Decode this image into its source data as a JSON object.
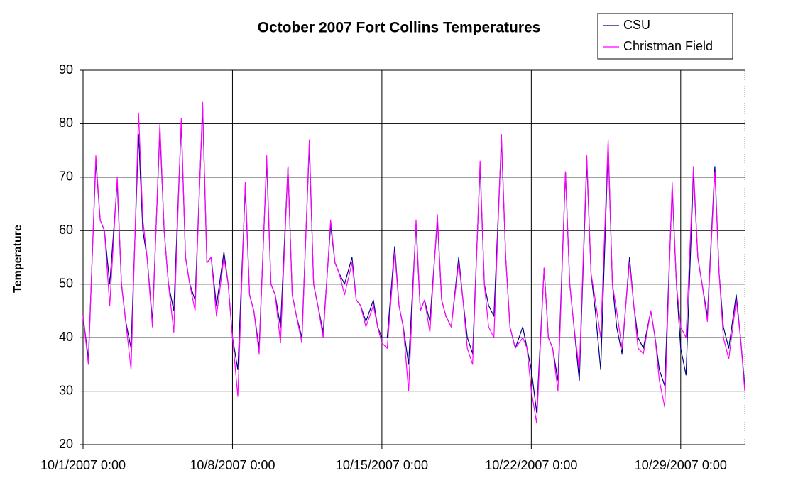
{
  "chart_data": {
    "type": "line",
    "title": "October 2007 Fort Collins Temperatures",
    "y_label": "Temperature",
    "x": [
      0,
      0.25,
      0.6,
      0.8,
      1,
      1.25,
      1.6,
      1.8,
      2,
      2.25,
      2.6,
      2.8,
      3,
      3.25,
      3.6,
      3.8,
      4,
      4.25,
      4.6,
      4.8,
      5,
      5.25,
      5.6,
      5.8,
      6,
      6.25,
      6.6,
      6.8,
      7,
      7.25,
      7.6,
      7.8,
      8,
      8.25,
      8.6,
      8.8,
      9,
      9.25,
      9.6,
      9.8,
      10,
      10.25,
      10.6,
      10.8,
      11,
      11.25,
      11.6,
      11.8,
      12,
      12.25,
      12.6,
      12.8,
      13,
      13.25,
      13.6,
      13.8,
      14,
      14.25,
      14.6,
      14.8,
      15,
      15.25,
      15.6,
      15.8,
      16,
      16.25,
      16.6,
      16.8,
      17,
      17.25,
      17.6,
      17.8,
      18,
      18.25,
      18.6,
      18.8,
      19,
      19.25,
      19.6,
      19.8,
      20,
      20.25,
      20.6,
      20.8,
      21,
      21.25,
      21.6,
      21.8,
      22,
      22.25,
      22.6,
      22.8,
      23,
      23.25,
      23.6,
      23.8,
      24,
      24.25,
      24.6,
      24.8,
      25,
      25.25,
      25.6,
      25.8,
      26,
      26.25,
      26.6,
      26.8,
      27,
      27.25,
      27.6,
      27.8,
      28,
      28.25,
      28.6,
      28.8,
      29,
      29.25,
      29.6,
      29.8,
      30,
      30.25,
      30.6,
      30.8,
      31
    ],
    "series": [
      {
        "name": "CSU",
        "color": "#000080",
        "values": [
          44,
          36,
          73,
          62,
          60,
          50,
          69,
          50,
          43,
          38,
          78,
          60,
          55,
          43,
          79,
          60,
          50,
          45,
          80,
          55,
          50,
          47,
          83,
          54,
          55,
          46,
          56,
          50,
          40,
          34,
          68,
          48,
          45,
          38,
          73,
          50,
          48,
          42,
          72,
          48,
          44,
          40,
          76,
          50,
          46,
          41,
          61,
          54,
          52,
          50,
          55,
          47,
          46,
          43,
          47,
          42,
          40,
          40,
          57,
          46,
          42,
          35,
          61,
          45,
          47,
          43,
          62,
          47,
          44,
          42,
          55,
          47,
          40,
          37,
          72,
          50,
          46,
          44,
          77,
          55,
          42,
          38,
          42,
          38,
          34,
          26,
          53,
          40,
          38,
          32,
          71,
          50,
          42,
          32,
          73,
          52,
          45,
          34,
          76,
          50,
          42,
          37,
          55,
          46,
          40,
          38,
          45,
          40,
          34,
          31,
          68,
          50,
          38,
          33,
          71,
          55,
          50,
          44,
          72,
          52,
          42,
          38,
          48,
          40,
          31
        ]
      },
      {
        "name": "Christman Field",
        "color": "#ff00ff",
        "values": [
          44,
          35,
          74,
          62,
          60,
          46,
          70,
          50,
          43,
          34,
          82,
          62,
          55,
          42,
          80,
          60,
          50,
          41,
          81,
          55,
          50,
          45,
          84,
          54,
          55,
          44,
          55,
          50,
          40,
          29,
          69,
          48,
          45,
          37,
          74,
          50,
          48,
          39,
          72,
          48,
          44,
          39,
          77,
          50,
          46,
          40,
          62,
          54,
          52,
          48,
          54,
          47,
          46,
          42,
          46,
          42,
          39,
          38,
          56,
          46,
          42,
          30,
          62,
          45,
          47,
          41,
          63,
          47,
          44,
          42,
          54,
          47,
          38,
          35,
          73,
          50,
          42,
          40,
          78,
          55,
          42,
          38,
          40,
          38,
          30,
          24,
          53,
          40,
          38,
          30,
          71,
          50,
          42,
          34,
          74,
          52,
          47,
          40,
          77,
          50,
          45,
          38,
          54,
          46,
          38,
          37,
          45,
          40,
          32,
          27,
          69,
          50,
          42,
          40,
          72,
          55,
          50,
          43,
          71,
          52,
          40,
          36,
          47,
          40,
          30
        ]
      }
    ],
    "xlim": [
      0,
      31
    ],
    "xticks": [
      {
        "value": 0,
        "label": "10/1/2007 0:00"
      },
      {
        "value": 7,
        "label": "10/8/2007 0:00"
      },
      {
        "value": 14,
        "label": "10/15/2007 0:00"
      },
      {
        "value": 21,
        "label": "10/22/2007 0:00"
      },
      {
        "value": 28,
        "label": "10/29/2007 0:00"
      }
    ],
    "ylim": [
      20,
      90
    ],
    "yticks": [
      20,
      30,
      40,
      50,
      60,
      70,
      80,
      90
    ],
    "grid": true,
    "legend": "top-right"
  }
}
